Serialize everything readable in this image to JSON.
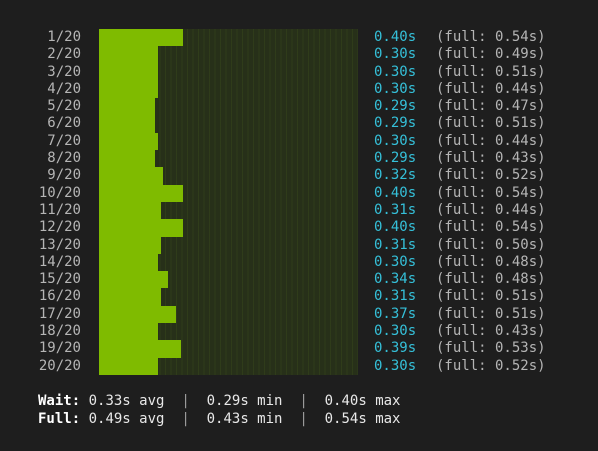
{
  "scale_max_seconds": 0.54,
  "colors": {
    "background": "#1e1e1e",
    "bar": "#7fbb00",
    "track": "#273019",
    "wait_value": "#35c0d9",
    "muted_text": "#b5b5b5"
  },
  "rows": [
    {
      "index": "1/20",
      "wait_value": 0.4,
      "wait": "0.40s",
      "full": "(full: 0.54s)"
    },
    {
      "index": "2/20",
      "wait_value": 0.3,
      "wait": "0.30s",
      "full": "(full: 0.49s)"
    },
    {
      "index": "3/20",
      "wait_value": 0.3,
      "wait": "0.30s",
      "full": "(full: 0.51s)"
    },
    {
      "index": "4/20",
      "wait_value": 0.3,
      "wait": "0.30s",
      "full": "(full: 0.44s)"
    },
    {
      "index": "5/20",
      "wait_value": 0.29,
      "wait": "0.29s",
      "full": "(full: 0.47s)"
    },
    {
      "index": "6/20",
      "wait_value": 0.29,
      "wait": "0.29s",
      "full": "(full: 0.51s)"
    },
    {
      "index": "7/20",
      "wait_value": 0.3,
      "wait": "0.30s",
      "full": "(full: 0.44s)"
    },
    {
      "index": "8/20",
      "wait_value": 0.29,
      "wait": "0.29s",
      "full": "(full: 0.43s)"
    },
    {
      "index": "9/20",
      "wait_value": 0.32,
      "wait": "0.32s",
      "full": "(full: 0.52s)"
    },
    {
      "index": "10/20",
      "wait_value": 0.4,
      "wait": "0.40s",
      "full": "(full: 0.54s)"
    },
    {
      "index": "11/20",
      "wait_value": 0.31,
      "wait": "0.31s",
      "full": "(full: 0.44s)"
    },
    {
      "index": "12/20",
      "wait_value": 0.4,
      "wait": "0.40s",
      "full": "(full: 0.54s)"
    },
    {
      "index": "13/20",
      "wait_value": 0.31,
      "wait": "0.31s",
      "full": "(full: 0.50s)"
    },
    {
      "index": "14/20",
      "wait_value": 0.3,
      "wait": "0.30s",
      "full": "(full: 0.48s)"
    },
    {
      "index": "15/20",
      "wait_value": 0.34,
      "wait": "0.34s",
      "full": "(full: 0.48s)"
    },
    {
      "index": "16/20",
      "wait_value": 0.31,
      "wait": "0.31s",
      "full": "(full: 0.51s)"
    },
    {
      "index": "17/20",
      "wait_value": 0.37,
      "wait": "0.37s",
      "full": "(full: 0.51s)"
    },
    {
      "index": "18/20",
      "wait_value": 0.3,
      "wait": "0.30s",
      "full": "(full: 0.43s)"
    },
    {
      "index": "19/20",
      "wait_value": 0.39,
      "wait": "0.39s",
      "full": "(full: 0.53s)"
    },
    {
      "index": "20/20",
      "wait_value": 0.3,
      "wait": "0.30s",
      "full": "(full: 0.52s)"
    }
  ],
  "summary": {
    "wait": {
      "label": "Wait:",
      "avg": "0.33s avg",
      "min": "0.29s min",
      "max": "0.40s max"
    },
    "full": {
      "label": "Full:",
      "avg": "0.49s avg",
      "min": "0.43s min",
      "max": "0.54s max"
    },
    "separator": "|"
  }
}
